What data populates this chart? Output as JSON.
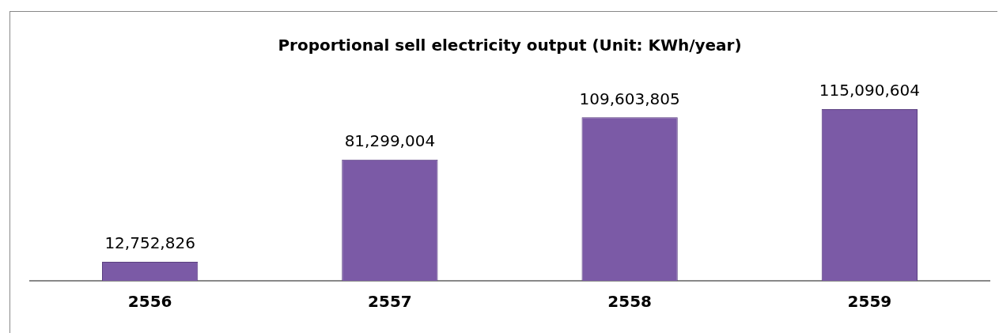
{
  "chart_data": {
    "type": "bar",
    "title": "Proportional sell electricity output (Unit: KWh/year)",
    "categories": [
      "2556",
      "2557",
      "2558",
      "2559"
    ],
    "values": [
      12752826,
      81299004,
      109603805,
      115090604
    ],
    "color": "#7b5aa6",
    "value_labels": [
      "12,752,826",
      "81,299,004",
      "109,603,805",
      "115,090,604"
    ],
    "grid": false,
    "legend": false
  }
}
